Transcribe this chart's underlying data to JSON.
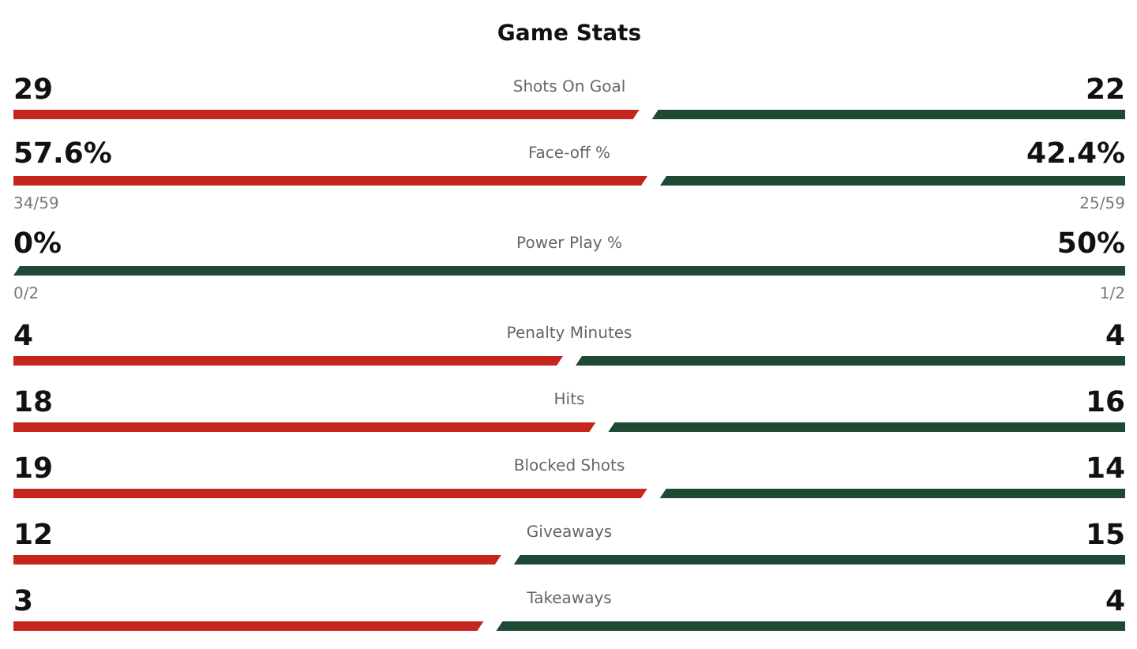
{
  "chart_data": {
    "type": "other",
    "title": "Game Stats",
    "categories": [
      "Shots On Goal",
      "Face-off %",
      "Power Play %",
      "Penalty Minutes",
      "Hits",
      "Blocked Shots",
      "Giveaways",
      "Takeaways"
    ],
    "series": [
      {
        "color": "#c4261d",
        "values": [
          29,
          57.6,
          0,
          4,
          18,
          19,
          12,
          3
        ],
        "value_labels": [
          "29",
          "57.6%",
          "0%",
          "4",
          "18",
          "19",
          "12",
          "3"
        ]
      },
      {
        "color": "#1e4a35",
        "values": [
          22,
          42.4,
          50,
          4,
          16,
          14,
          15,
          4
        ],
        "value_labels": [
          "22",
          "42.4%",
          "50%",
          "4",
          "16",
          "14",
          "15",
          "4"
        ]
      }
    ],
    "annotations": [
      {
        "text": "34/59",
        "y": "Face-off %"
      },
      {
        "text": "25/59",
        "y": "Face-off %"
      },
      {
        "text": "0/2",
        "y": "Power Play %"
      },
      {
        "text": "1/2",
        "y": "Power Play %"
      }
    ]
  }
}
